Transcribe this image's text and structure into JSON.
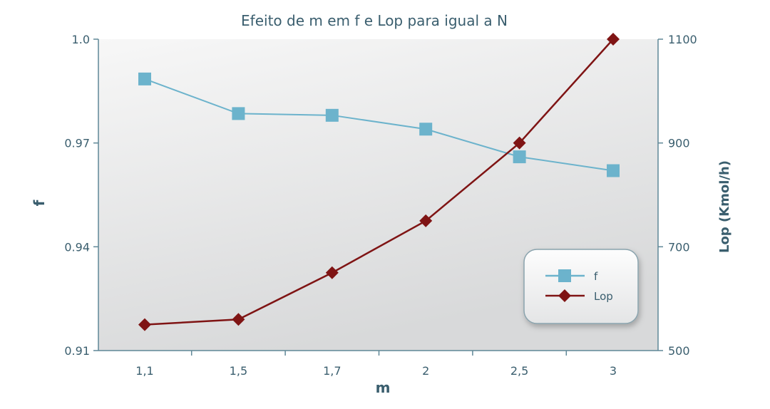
{
  "chart_data": {
    "type": "line",
    "title": "Efeito de m em f e Lop para igual a N",
    "xlabel": "m",
    "ylabel_left": "f",
    "ylabel_right": "Lop (Kmol/h)",
    "categories": [
      "1,1",
      "1,5",
      "1,7",
      "2",
      "2,5",
      "3"
    ],
    "y_left": {
      "lim": [
        0.91,
        1.0
      ],
      "ticks": [
        "0.91",
        "0.94",
        "0.97",
        "1.0"
      ],
      "tick_values": [
        0.91,
        0.94,
        0.97,
        1.0
      ]
    },
    "y_right": {
      "lim": [
        500,
        1100
      ],
      "ticks": [
        "500",
        "700",
        "900",
        "1100"
      ],
      "tick_values": [
        500,
        700,
        900,
        1100
      ]
    },
    "grid": false,
    "legend_position": "bottom-right",
    "series": [
      {
        "name": "f",
        "axis": "left",
        "marker": "square",
        "color": "#6cb3cc",
        "values": [
          0.9885,
          0.9785,
          0.978,
          0.974,
          0.966,
          0.962
        ]
      },
      {
        "name": "Lop",
        "axis": "right",
        "marker": "diamond",
        "color": "#7f1414",
        "values": [
          550,
          560,
          650,
          750,
          900,
          1100
        ]
      }
    ]
  },
  "colors": {
    "text": "#3a5e6e",
    "axis": "#5f8797",
    "plot_bg_light": "#f7f7f7",
    "plot_bg_dark": "#d8d9da"
  }
}
